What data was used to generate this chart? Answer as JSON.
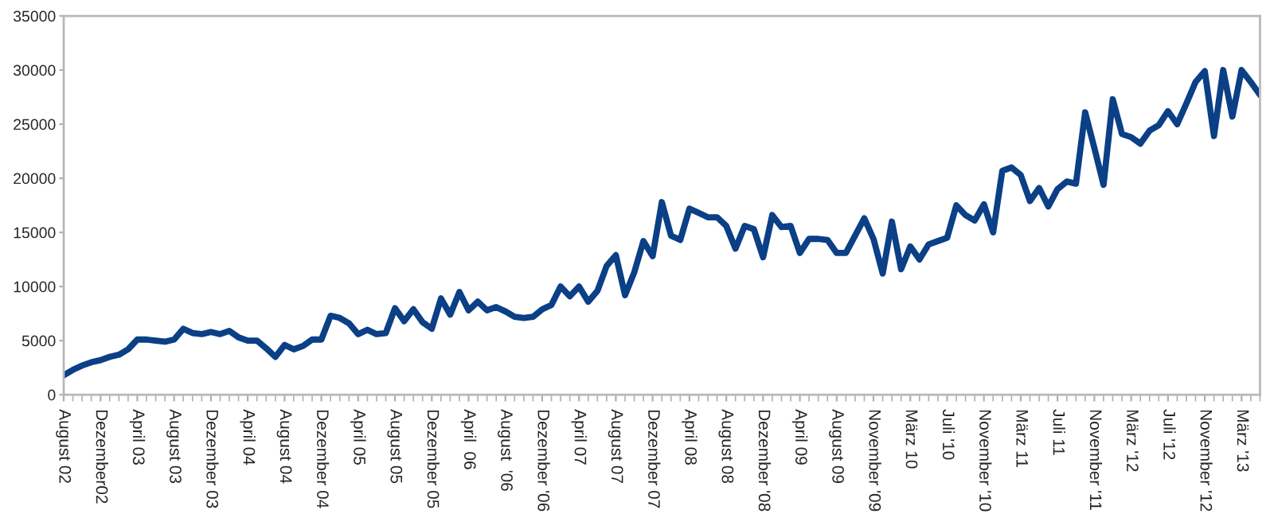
{
  "chart_data": {
    "type": "line",
    "categories": [
      "August 02",
      null,
      null,
      null,
      "Dezember02",
      null,
      null,
      null,
      "April 03",
      null,
      null,
      null,
      "August 03",
      null,
      null,
      null,
      "Dezember 03",
      null,
      null,
      null,
      "April 04",
      null,
      null,
      null,
      "August 04",
      null,
      null,
      null,
      "Dezember 04",
      null,
      null,
      null,
      "April 05",
      null,
      null,
      null,
      "August 05",
      null,
      null,
      null,
      "Dezember 05",
      null,
      null,
      null,
      "April  06",
      null,
      null,
      null,
      "August  '06",
      null,
      null,
      null,
      "Dezember '06",
      null,
      null,
      null,
      "April 07",
      null,
      null,
      null,
      "August 07",
      null,
      null,
      null,
      "Dezember 07",
      null,
      null,
      null,
      "April 08",
      null,
      null,
      null,
      "August 08",
      null,
      null,
      null,
      "Dezember '08",
      null,
      null,
      null,
      "April 09",
      null,
      null,
      null,
      "August 09",
      null,
      null,
      null,
      "November '09",
      null,
      null,
      null,
      "März 10",
      null,
      null,
      null,
      "Juli '10",
      null,
      null,
      null,
      "November '10",
      null,
      null,
      null,
      "März 11",
      null,
      null,
      null,
      "Juli 11",
      null,
      null,
      null,
      "November '11",
      null,
      null,
      null,
      "März '12",
      null,
      null,
      null,
      "Juli '12",
      null,
      null,
      null,
      "November '12",
      null,
      null,
      null,
      "März '13",
      null,
      null
    ],
    "series": [
      {
        "color": "#0b3f86",
        "values": [
          1800,
          2300,
          2700,
          3000,
          3200,
          3500,
          3700,
          4200,
          5100,
          5100,
          5000,
          4900,
          5100,
          6100,
          5700,
          5600,
          5800,
          5600,
          5900,
          5300,
          5000,
          5000,
          4300,
          3500,
          4600,
          4200,
          4500,
          5100,
          5100,
          7300,
          7100,
          6600,
          5600,
          6000,
          5600,
          5700,
          8000,
          6800,
          7900,
          6700,
          6100,
          8900,
          7400,
          9500,
          7800,
          8600,
          7800,
          8100,
          7700,
          7200,
          7100,
          7200,
          7900,
          8300,
          10000,
          9100,
          10000,
          8600,
          9600,
          11900,
          12900,
          9200,
          11300,
          14200,
          12800,
          17800,
          14700,
          14300,
          17200,
          16800,
          16400,
          16400,
          15600,
          13500,
          15600,
          15300,
          12700,
          16600,
          15500,
          15600,
          13100,
          14400,
          14400,
          14300,
          13100,
          13100,
          14700,
          16300,
          14400,
          11200,
          16000,
          11600,
          13700,
          12500,
          13900,
          14200,
          14500,
          17500,
          16600,
          16100,
          17600,
          15000,
          20700,
          21000,
          20300,
          17900,
          19100,
          17400,
          19000,
          19700,
          19500,
          26100,
          22800,
          19400,
          27300,
          24100,
          23800,
          23200,
          24400,
          24900,
          26200,
          25000,
          26900,
          28900,
          29900,
          23900,
          30000,
          25700,
          30000,
          28900,
          27700
        ]
      }
    ],
    "ylim": [
      0,
      35000
    ],
    "yticks": [
      0,
      5000,
      10000,
      15000,
      20000,
      25000,
      30000,
      35000
    ],
    "grid": false,
    "marker": "none",
    "line_style": "solid"
  }
}
